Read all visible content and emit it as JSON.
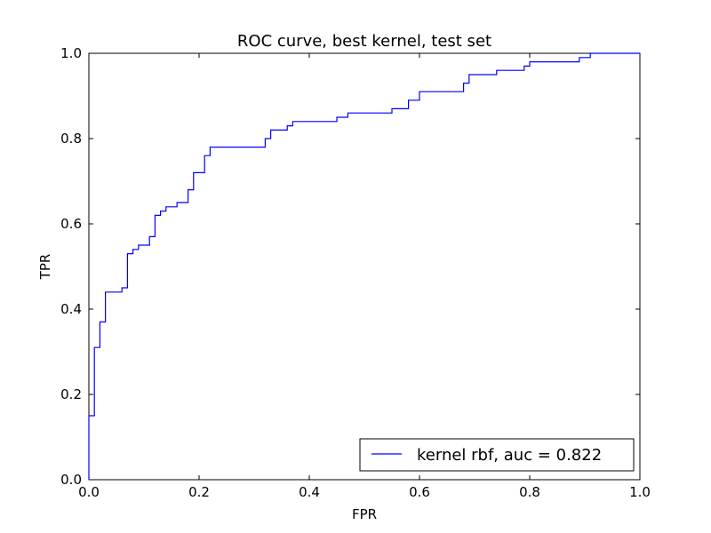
{
  "chart_data": {
    "type": "line",
    "title": "ROC curve, best kernel, test set",
    "xlabel": "FPR",
    "ylabel": "TPR",
    "xlim": [
      0.0,
      1.0
    ],
    "ylim": [
      0.0,
      1.0
    ],
    "xticks": [
      "0.0",
      "0.2",
      "0.4",
      "0.6",
      "0.8",
      "1.0"
    ],
    "yticks": [
      "0.0",
      "0.2",
      "0.4",
      "0.6",
      "0.8",
      "1.0"
    ],
    "grid": false,
    "legend_position": "lower-right",
    "series": [
      {
        "name": "kernel rbf, auc = 0.822",
        "color": "#0000ff",
        "step": true,
        "points": [
          [
            0.0,
            0.0
          ],
          [
            0.0,
            0.15
          ],
          [
            0.01,
            0.15
          ],
          [
            0.01,
            0.31
          ],
          [
            0.02,
            0.31
          ],
          [
            0.02,
            0.37
          ],
          [
            0.03,
            0.37
          ],
          [
            0.03,
            0.44
          ],
          [
            0.06,
            0.44
          ],
          [
            0.06,
            0.45
          ],
          [
            0.07,
            0.45
          ],
          [
            0.07,
            0.53
          ],
          [
            0.08,
            0.53
          ],
          [
            0.08,
            0.54
          ],
          [
            0.09,
            0.54
          ],
          [
            0.09,
            0.55
          ],
          [
            0.11,
            0.55
          ],
          [
            0.11,
            0.57
          ],
          [
            0.12,
            0.57
          ],
          [
            0.12,
            0.62
          ],
          [
            0.13,
            0.62
          ],
          [
            0.13,
            0.63
          ],
          [
            0.14,
            0.63
          ],
          [
            0.14,
            0.64
          ],
          [
            0.16,
            0.64
          ],
          [
            0.16,
            0.65
          ],
          [
            0.18,
            0.65
          ],
          [
            0.18,
            0.68
          ],
          [
            0.19,
            0.68
          ],
          [
            0.19,
            0.72
          ],
          [
            0.21,
            0.72
          ],
          [
            0.21,
            0.76
          ],
          [
            0.22,
            0.76
          ],
          [
            0.22,
            0.78
          ],
          [
            0.32,
            0.78
          ],
          [
            0.32,
            0.8
          ],
          [
            0.33,
            0.8
          ],
          [
            0.33,
            0.82
          ],
          [
            0.36,
            0.82
          ],
          [
            0.36,
            0.83
          ],
          [
            0.37,
            0.83
          ],
          [
            0.37,
            0.84
          ],
          [
            0.45,
            0.84
          ],
          [
            0.45,
            0.85
          ],
          [
            0.47,
            0.85
          ],
          [
            0.47,
            0.86
          ],
          [
            0.55,
            0.86
          ],
          [
            0.55,
            0.87
          ],
          [
            0.58,
            0.87
          ],
          [
            0.58,
            0.89
          ],
          [
            0.6,
            0.89
          ],
          [
            0.6,
            0.91
          ],
          [
            0.68,
            0.91
          ],
          [
            0.68,
            0.93
          ],
          [
            0.69,
            0.93
          ],
          [
            0.69,
            0.95
          ],
          [
            0.74,
            0.95
          ],
          [
            0.74,
            0.96
          ],
          [
            0.79,
            0.96
          ],
          [
            0.79,
            0.97
          ],
          [
            0.8,
            0.97
          ],
          [
            0.8,
            0.98
          ],
          [
            0.89,
            0.98
          ],
          [
            0.89,
            0.99
          ],
          [
            0.91,
            0.99
          ],
          [
            0.91,
            1.0
          ],
          [
            1.0,
            1.0
          ]
        ]
      }
    ]
  }
}
